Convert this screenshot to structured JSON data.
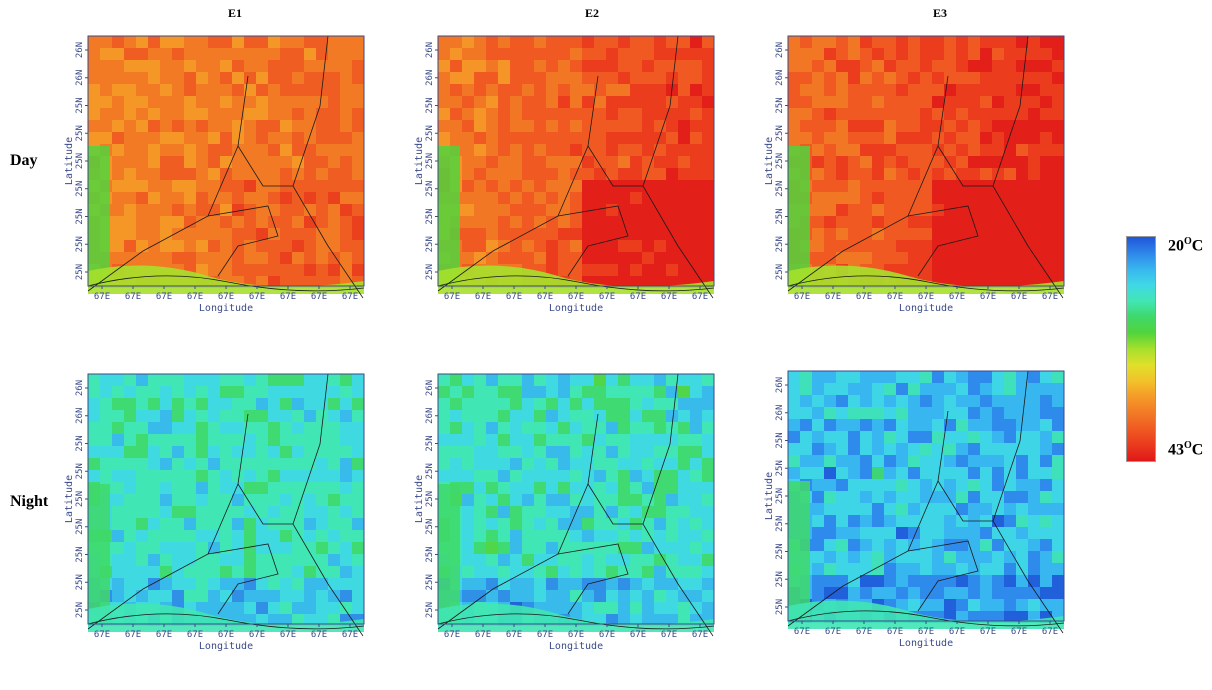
{
  "figure": {
    "columns": [
      "E1",
      "E2",
      "E3"
    ],
    "rows": [
      "Day",
      "Night"
    ]
  },
  "axes": {
    "x_ticks": [
      "67E",
      "67E",
      "67E",
      "67E",
      "67E",
      "67E",
      "67E",
      "67E",
      "67E"
    ],
    "y_ticks": [
      "26N",
      "26N",
      "25N",
      "25N",
      "25N",
      "25N",
      "25N",
      "25N",
      "25N"
    ],
    "xlabel": "Longitude",
    "ylabel": "Latitude"
  },
  "colorbar": {
    "min_value": "20",
    "max_value": "43",
    "unit_super": "O",
    "unit_main": "C",
    "stops": [
      "#1e56d8",
      "#2f86ea",
      "#37b6ef",
      "#3fd8e6",
      "#40e6b4",
      "#3fd86a",
      "#52d43c",
      "#a6e02c",
      "#e0e02a",
      "#f2c22a",
      "#f59a28",
      "#f27a26",
      "#ef5a22",
      "#ea3a1e",
      "#e01818"
    ]
  },
  "chart_data": {
    "type": "heatmap",
    "title": "",
    "xlabel": "Longitude",
    "ylabel": "Latitude",
    "value_range": [
      20,
      43
    ],
    "value_unit": "°C",
    "panels": [
      {
        "experiment": "E1",
        "period": "Day",
        "typical_temperature": 38,
        "hot_patch_temperature": 39
      },
      {
        "experiment": "E2",
        "period": "Day",
        "typical_temperature": 39,
        "hot_patch_temperature": 42
      },
      {
        "experiment": "E3",
        "period": "Day",
        "typical_temperature": 40,
        "hot_patch_temperature": 43
      },
      {
        "experiment": "E1",
        "period": "Night",
        "typical_temperature": 26,
        "hot_patch_temperature": 30
      },
      {
        "experiment": "E2",
        "period": "Night",
        "typical_temperature": 26,
        "hot_patch_temperature": 31
      },
      {
        "experiment": "E3",
        "period": "Night",
        "typical_temperature": 24,
        "hot_patch_temperature": 29
      }
    ]
  }
}
